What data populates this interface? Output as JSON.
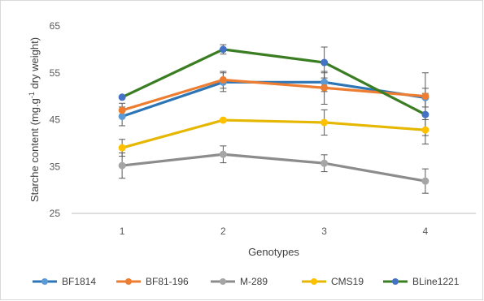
{
  "chart_data": {
    "type": "line",
    "xlabel": "Genotypes",
    "ylabel": "Starche content (mg.g",
    "ylabel_sup": "-1",
    "ylabel_tail": " dry weight)",
    "x": [
      "1",
      "2",
      "3",
      "4"
    ],
    "ylim": [
      25,
      65
    ],
    "yticks": [
      "25",
      "35",
      "45",
      "55",
      "65"
    ],
    "grid": false,
    "legend_position": "bottom",
    "series": [
      {
        "name": "BF1814",
        "color": "#2E75B6",
        "marker": "#5B9BD5",
        "values": [
          45.7,
          53.0,
          53.0,
          49.7
        ],
        "errors": [
          2.0,
          2.0,
          2.0,
          2.0
        ]
      },
      {
        "name": "BF81-196",
        "color": "#ED7D31",
        "marker": "#ED7D31",
        "values": [
          47.0,
          53.5,
          51.8,
          50.0
        ],
        "errors": [
          1.5,
          1.8,
          3.5,
          5.0
        ]
      },
      {
        "name": "M-289",
        "color": "#8C8C8C",
        "marker": "#A5A5A5",
        "values": [
          35.2,
          37.6,
          35.7,
          31.9
        ],
        "errors": [
          2.7,
          1.8,
          1.8,
          2.6
        ]
      },
      {
        "name": "CMS19",
        "color": "#E5B700",
        "marker": "#FFC000",
        "values": [
          39.0,
          44.9,
          44.4,
          42.8
        ],
        "errors": [
          1.8,
          0.2,
          2.7,
          3.0
        ]
      },
      {
        "name": "BLine1221",
        "color": "#3A7D22",
        "marker": "#4472C4",
        "values": [
          49.8,
          60.0,
          57.2,
          46.1
        ],
        "errors": [
          0.0,
          1.0,
          3.3,
          4.5
        ]
      }
    ]
  }
}
